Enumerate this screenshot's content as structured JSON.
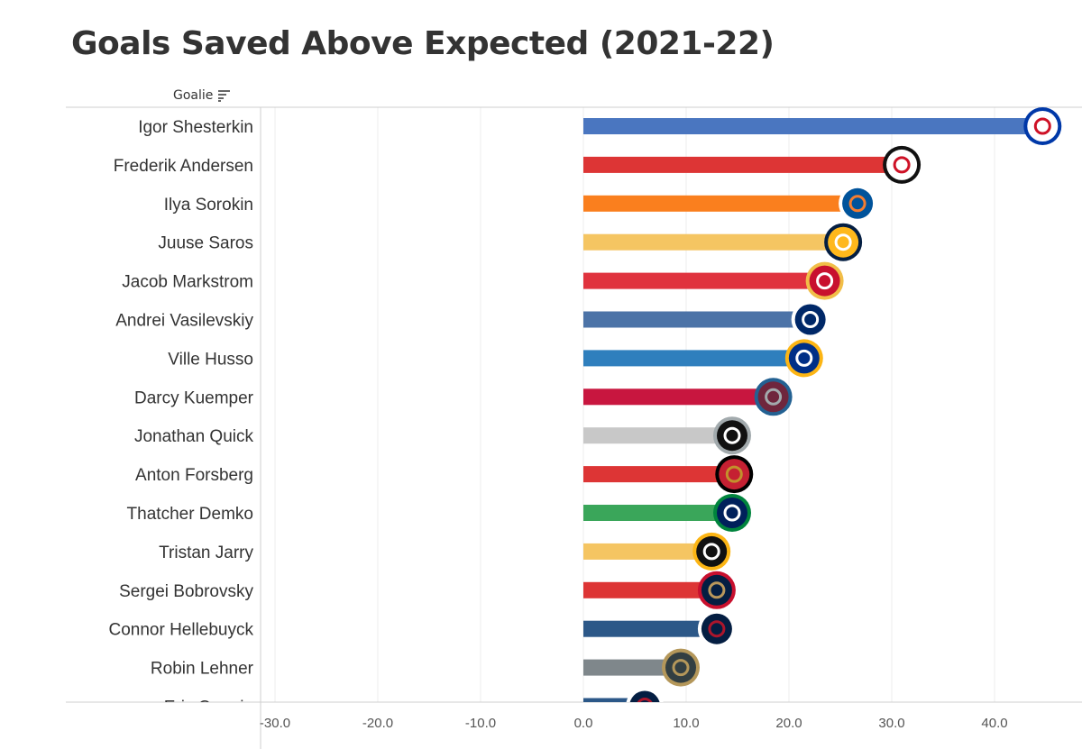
{
  "title": "Goals Saved Above Expected (2021-22)",
  "goalie_header": "Goalie",
  "sort_icon": "sort-descending-icon",
  "chart_data": {
    "type": "bar",
    "orientation": "horizontal",
    "title": "Goals Saved Above Expected (2021-22)",
    "ylabel": "Goalie",
    "xlabel": "",
    "xlim": [
      -31,
      48
    ],
    "x_ticks": [
      -30,
      -20,
      -10,
      0,
      10,
      20,
      30,
      40
    ],
    "x_tick_labels": [
      "-30.0",
      "-20.0",
      "-10.0",
      "0.0",
      "10.0",
      "20.0",
      "30.0",
      "40.0"
    ],
    "grid": "vertical",
    "categories": [
      "Igor Shesterkin",
      "Frederik Andersen",
      "Ilya Sorokin",
      "Juuse Saros",
      "Jacob Markstrom",
      "Andrei Vasilevskiy",
      "Ville Husso",
      "Darcy Kuemper",
      "Jonathan Quick",
      "Anton Forsberg",
      "Thatcher Demko",
      "Tristan Jarry",
      "Sergei Bobrovsky",
      "Connor Hellebuyck",
      "Robin Lehner",
      "Eric Comrie"
    ],
    "values": [
      45.2,
      31.5,
      27.2,
      25.8,
      24.0,
      22.6,
      22.0,
      19.0,
      15.0,
      15.2,
      15.0,
      13.0,
      13.5,
      13.5,
      10.0,
      6.5
    ],
    "colors": [
      "#4a76c0",
      "#dd3535",
      "#fa7f1e",
      "#f5c562",
      "#e0333e",
      "#4c73a7",
      "#2f7fbd",
      "#c8163f",
      "#c8c8c8",
      "#dd3535",
      "#3aa65a",
      "#f5c562",
      "#dd3535",
      "#2c5888",
      "#7f878b",
      "#2c5888"
    ],
    "team_logos": [
      "new-york-rangers-logo",
      "carolina-hurricanes-logo",
      "new-york-islanders-logo",
      "nashville-predators-logo",
      "calgary-flames-logo",
      "tampa-bay-lightning-logo",
      "st-louis-blues-logo",
      "colorado-avalanche-logo",
      "los-angeles-kings-logo",
      "ottawa-senators-logo",
      "vancouver-canucks-logo",
      "pittsburgh-penguins-logo",
      "florida-panthers-logo",
      "winnipeg-jets-logo",
      "vegas-golden-knights-logo",
      "winnipeg-jets-logo"
    ],
    "logo_colors": [
      {
        "main": "#ffffff",
        "ring": "#0038a8",
        "accent": "#ce1126"
      },
      {
        "main": "#ffffff",
        "ring": "#111111",
        "accent": "#ce1126"
      },
      {
        "main": "#00539b",
        "ring": "#ffffff",
        "accent": "#f47d30"
      },
      {
        "main": "#ffb81c",
        "ring": "#041e42",
        "accent": "#ffffff"
      },
      {
        "main": "#c8102e",
        "ring": "#f1be48",
        "accent": "#ffffff"
      },
      {
        "main": "#002868",
        "ring": "#ffffff",
        "accent": "#ffffff"
      },
      {
        "main": "#002f87",
        "ring": "#fcb514",
        "accent": "#ffffff"
      },
      {
        "main": "#6f263d",
        "ring": "#236192",
        "accent": "#a2aaad"
      },
      {
        "main": "#111111",
        "ring": "#a2aaad",
        "accent": "#ffffff"
      },
      {
        "main": "#c52032",
        "ring": "#000000",
        "accent": "#c2912c"
      },
      {
        "main": "#00205b",
        "ring": "#00843d",
        "accent": "#ffffff"
      },
      {
        "main": "#111111",
        "ring": "#fcb514",
        "accent": "#ffffff"
      },
      {
        "main": "#041e42",
        "ring": "#c8102e",
        "accent": "#b9975b"
      },
      {
        "main": "#041e42",
        "ring": "#ffffff",
        "accent": "#ac162c"
      },
      {
        "main": "#333f42",
        "ring": "#b4975a",
        "accent": "#b4975a"
      },
      {
        "main": "#041e42",
        "ring": "#ffffff",
        "accent": "#ac162c"
      }
    ]
  }
}
